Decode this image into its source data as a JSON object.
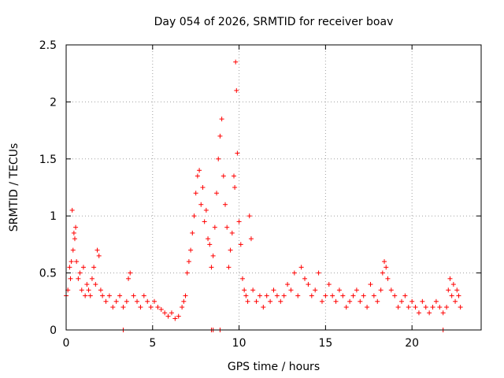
{
  "chart_data": {
    "type": "scatter",
    "title": "Day 054 of 2026, SRMTID for receiver boav",
    "xlabel": "GPS time / hours",
    "ylabel": "SRMTID / TECUs",
    "xlim": [
      0,
      24
    ],
    "ylim": [
      0,
      2.5
    ],
    "xticks": [
      "0",
      "5",
      "10",
      "15",
      "20"
    ],
    "yticks": [
      "0",
      "0.5",
      "1",
      "1.5",
      "2",
      "2.5"
    ],
    "grid": true,
    "marker": "+",
    "color": "#ff0000",
    "series": [
      {
        "name": "SRMTID",
        "x": [
          0.0,
          0.1,
          0.2,
          0.25,
          0.3,
          0.35,
          0.4,
          0.45,
          0.5,
          0.55,
          0.6,
          0.7,
          0.8,
          0.9,
          1.0,
          1.1,
          1.2,
          1.3,
          1.4,
          1.5,
          1.6,
          1.7,
          1.8,
          1.9,
          2.0,
          2.1,
          2.3,
          2.5,
          2.7,
          2.9,
          3.1,
          3.3,
          3.5,
          3.6,
          3.7,
          3.9,
          4.1,
          4.3,
          4.5,
          4.7,
          4.9,
          5.1,
          5.3,
          5.5,
          5.7,
          5.9,
          6.1,
          6.3,
          6.5,
          6.7,
          6.8,
          6.9,
          7.0,
          7.1,
          7.2,
          7.3,
          7.4,
          7.5,
          7.6,
          7.7,
          7.8,
          7.9,
          8.0,
          8.1,
          8.2,
          8.3,
          8.4,
          8.5,
          8.6,
          8.7,
          8.8,
          8.9,
          9.0,
          9.1,
          9.2,
          9.3,
          9.4,
          9.5,
          9.6,
          9.7,
          9.75,
          9.8,
          9.85,
          9.9,
          10.0,
          10.1,
          10.2,
          10.3,
          10.4,
          10.5,
          10.6,
          10.7,
          10.8,
          11.0,
          11.2,
          11.4,
          11.6,
          11.8,
          12.0,
          12.2,
          12.4,
          12.6,
          12.8,
          13.0,
          13.2,
          13.4,
          13.6,
          13.8,
          14.0,
          14.2,
          14.4,
          14.6,
          14.8,
          15.0,
          15.2,
          15.4,
          15.6,
          15.8,
          16.0,
          16.2,
          16.4,
          16.6,
          16.8,
          17.0,
          17.2,
          17.4,
          17.6,
          17.8,
          18.0,
          18.2,
          18.3,
          18.4,
          18.5,
          18.6,
          18.8,
          19.0,
          19.2,
          19.4,
          19.6,
          19.8,
          20.0,
          20.2,
          20.4,
          20.6,
          20.8,
          21.0,
          21.2,
          21.4,
          21.6,
          21.8,
          22.0,
          22.1,
          22.2,
          22.3,
          22.4,
          22.5,
          22.6,
          22.7,
          22.8,
          3.3,
          8.4,
          8.5,
          8.9,
          21.8
        ],
        "y": [
          0.3,
          0.35,
          0.55,
          0.45,
          0.6,
          1.05,
          0.7,
          0.85,
          0.8,
          0.9,
          0.6,
          0.45,
          0.5,
          0.35,
          0.55,
          0.3,
          0.4,
          0.35,
          0.3,
          0.45,
          0.55,
          0.4,
          0.7,
          0.65,
          0.35,
          0.3,
          0.25,
          0.3,
          0.2,
          0.25,
          0.3,
          0.2,
          0.25,
          0.45,
          0.5,
          0.3,
          0.25,
          0.2,
          0.3,
          0.25,
          0.2,
          0.25,
          0.2,
          0.18,
          0.15,
          0.12,
          0.15,
          0.1,
          0.12,
          0.2,
          0.25,
          0.3,
          0.5,
          0.6,
          0.7,
          0.85,
          1.0,
          1.2,
          1.35,
          1.4,
          1.1,
          1.25,
          0.95,
          1.05,
          0.8,
          0.75,
          0.55,
          0.65,
          0.9,
          1.2,
          1.5,
          1.7,
          1.85,
          1.35,
          1.1,
          0.9,
          0.55,
          0.7,
          0.85,
          1.35,
          1.25,
          2.35,
          2.1,
          1.55,
          0.95,
          0.75,
          0.45,
          0.35,
          0.3,
          0.25,
          1.0,
          0.8,
          0.35,
          0.25,
          0.3,
          0.2,
          0.3,
          0.25,
          0.35,
          0.3,
          0.25,
          0.3,
          0.4,
          0.35,
          0.5,
          0.3,
          0.55,
          0.45,
          0.4,
          0.3,
          0.35,
          0.5,
          0.25,
          0.3,
          0.4,
          0.3,
          0.25,
          0.35,
          0.3,
          0.2,
          0.25,
          0.3,
          0.35,
          0.25,
          0.3,
          0.2,
          0.4,
          0.3,
          0.25,
          0.35,
          0.5,
          0.6,
          0.55,
          0.45,
          0.35,
          0.3,
          0.2,
          0.25,
          0.3,
          0.2,
          0.25,
          0.2,
          0.15,
          0.25,
          0.2,
          0.15,
          0.2,
          0.25,
          0.2,
          0.15,
          0.2,
          0.35,
          0.45,
          0.3,
          0.4,
          0.25,
          0.35,
          0.3,
          0.2,
          0.0,
          0.0,
          0.0,
          0.0,
          0.0
        ]
      }
    ]
  }
}
